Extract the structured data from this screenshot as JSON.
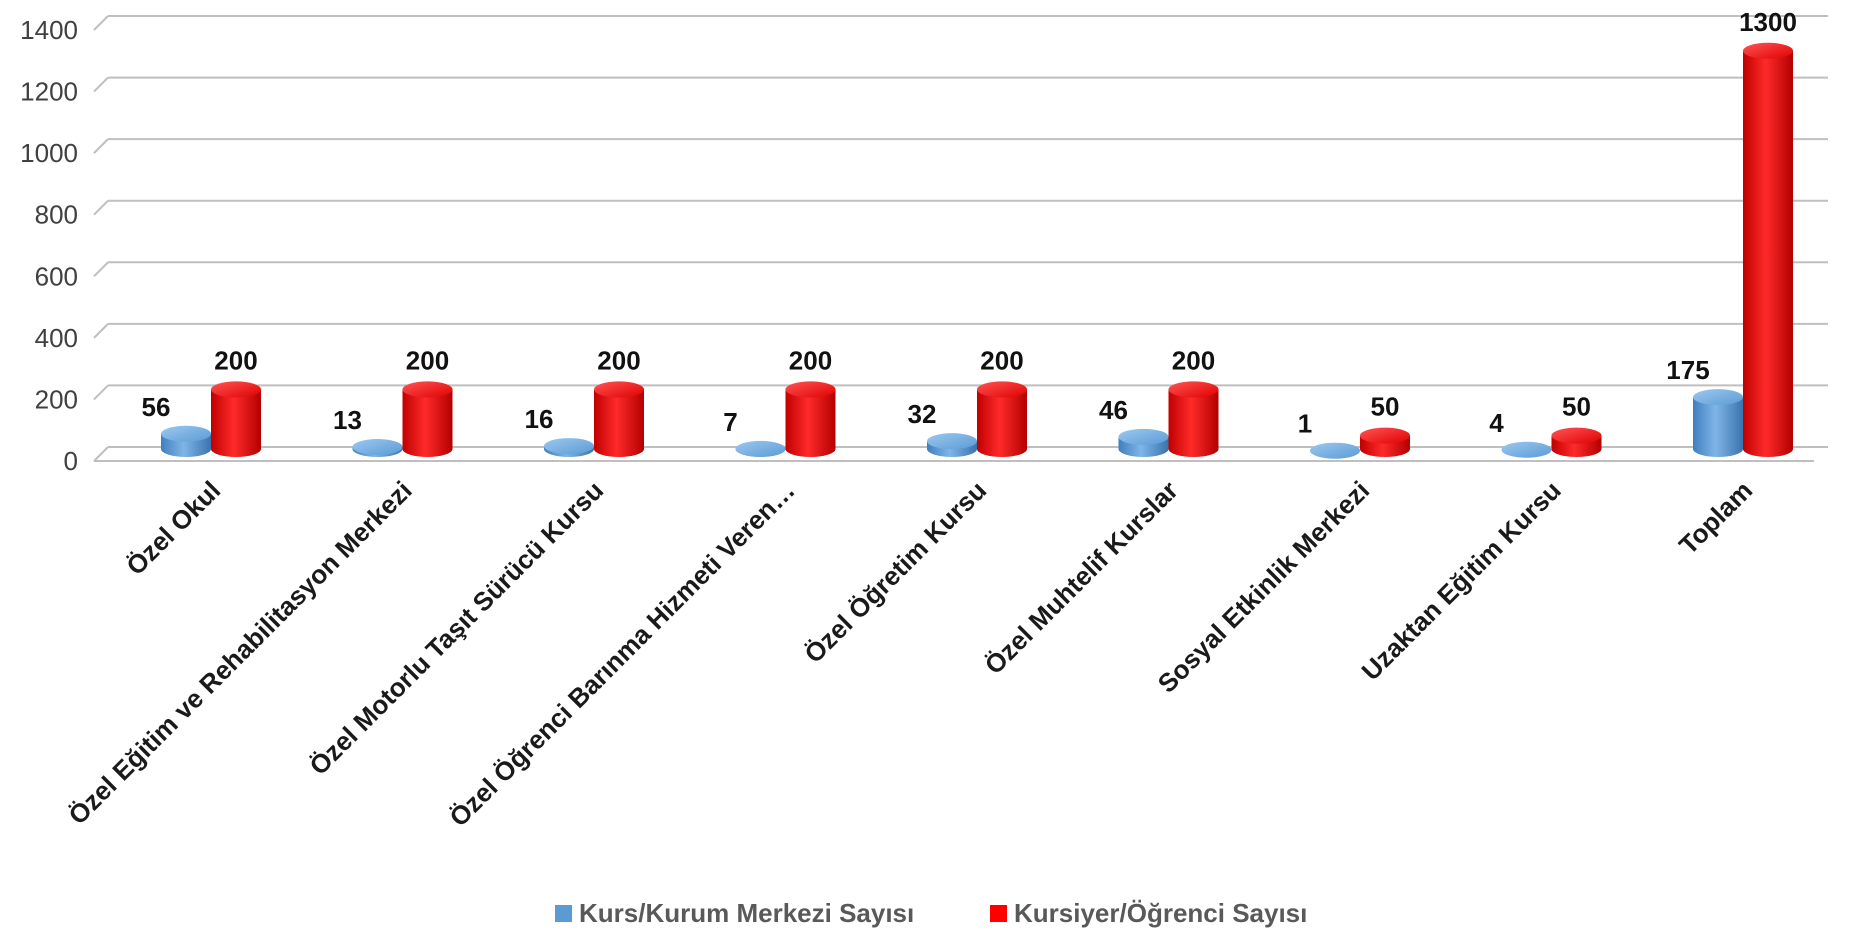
{
  "chart_data": {
    "type": "bar",
    "style": "3d-cylinder",
    "categories": [
      "Özel Okul",
      "Özel Eğitim ve Rehabilitasyon Merkezi",
      "Özel Motorlu Taşıt Sürücü Kursu",
      "Özel Öğrenci Barınma Hizmeti Veren…",
      "Özel Öğretim Kursu",
      "Özel Muhtelif Kurslar",
      "Sosyal Etkinlik Merkezi",
      "Uzaktan Eğitim Kursu",
      "Toplam"
    ],
    "series": [
      {
        "name": "Kurs/Kurum Merkezi Sayısı",
        "color": "#5B9BD5",
        "values": [
          56,
          13,
          16,
          7,
          32,
          46,
          1,
          4,
          175
        ]
      },
      {
        "name": "Kursiyer/Öğrenci Sayısı",
        "color": "#FF0000",
        "values": [
          200,
          200,
          200,
          200,
          200,
          200,
          50,
          50,
          1300
        ]
      }
    ],
    "y_ticks": [
      "0",
      "200",
      "400",
      "600",
      "800",
      "1000",
      "1200",
      "1400"
    ],
    "ylim": [
      0,
      1400
    ],
    "grid": true,
    "legend": "bottom",
    "data_labels": true
  }
}
